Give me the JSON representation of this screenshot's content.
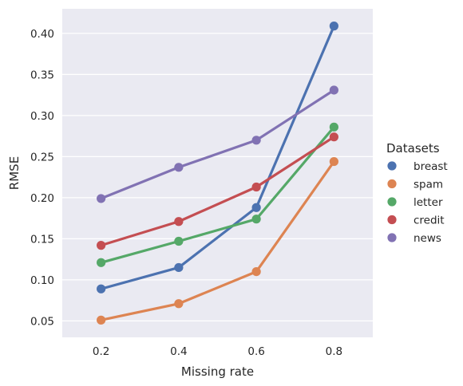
{
  "chart_data": {
    "type": "line",
    "title": "",
    "xlabel": "Missing rate",
    "ylabel": "RMSE",
    "categories": [
      "0.2",
      "0.4",
      "0.6",
      "0.8"
    ],
    "yticks": [
      "0.05",
      "0.10",
      "0.15",
      "0.20",
      "0.25",
      "0.30",
      "0.35",
      "0.40"
    ],
    "ylim": [
      0.03,
      0.43
    ],
    "grid": true,
    "legend_title": "Datasets",
    "legend_position": "right",
    "series": [
      {
        "name": "breast",
        "color": "#4c72b0",
        "values": [
          0.089,
          0.115,
          0.188,
          0.409
        ]
      },
      {
        "name": "spam",
        "color": "#dd8452",
        "values": [
          0.051,
          0.071,
          0.11,
          0.244
        ]
      },
      {
        "name": "letter",
        "color": "#55a868",
        "values": [
          0.121,
          0.147,
          0.174,
          0.286
        ]
      },
      {
        "name": "credit",
        "color": "#c44e52",
        "values": [
          0.142,
          0.171,
          0.213,
          0.274
        ]
      },
      {
        "name": "news",
        "color": "#8172b3",
        "values": [
          0.199,
          0.237,
          0.27,
          0.331
        ]
      }
    ]
  }
}
